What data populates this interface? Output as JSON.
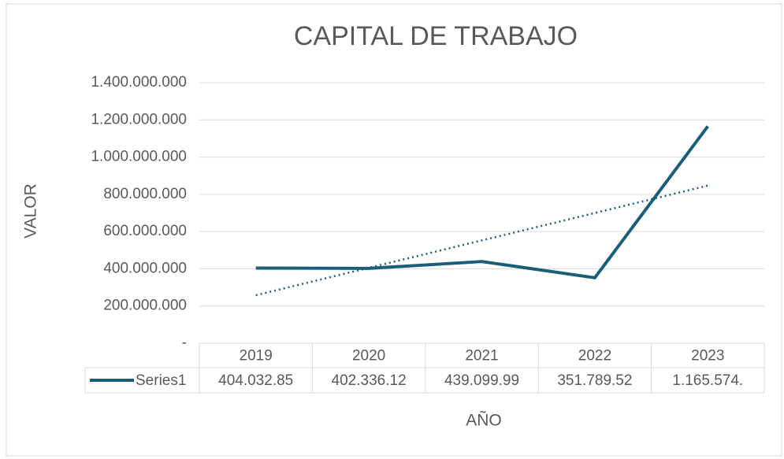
{
  "chart_data": {
    "type": "line",
    "title": "CAPITAL DE TRABAJO",
    "x_label": "AÑO",
    "y_label": "VALOR",
    "categories": [
      "2019",
      "2020",
      "2021",
      "2022",
      "2023"
    ],
    "series": [
      {
        "name": "Series1",
        "color": "#1b5e7b",
        "values": [
          404032850,
          402336120,
          439099990,
          351789520,
          1165574000
        ],
        "value_labels": [
          "404.032.85",
          "402.336.12",
          "439.099.99",
          "351.789.52",
          "1.165.574."
        ]
      }
    ],
    "ylim": [
      0,
      1400000000
    ],
    "yticks": [
      {
        "value": 0,
        "label": "-"
      },
      {
        "value": 200000000,
        "label": "200.000.000"
      },
      {
        "value": 400000000,
        "label": "400.000.000"
      },
      {
        "value": 600000000,
        "label": "600.000.000"
      },
      {
        "value": 800000000,
        "label": "800.000.000"
      },
      {
        "value": 1000000000,
        "label": "1.000.000.000"
      },
      {
        "value": 1200000000,
        "label": "1.200.000.000"
      },
      {
        "value": 1400000000,
        "label": "1.400.000.000"
      }
    ],
    "grid": true,
    "trendline": "linear",
    "data_table": true
  }
}
